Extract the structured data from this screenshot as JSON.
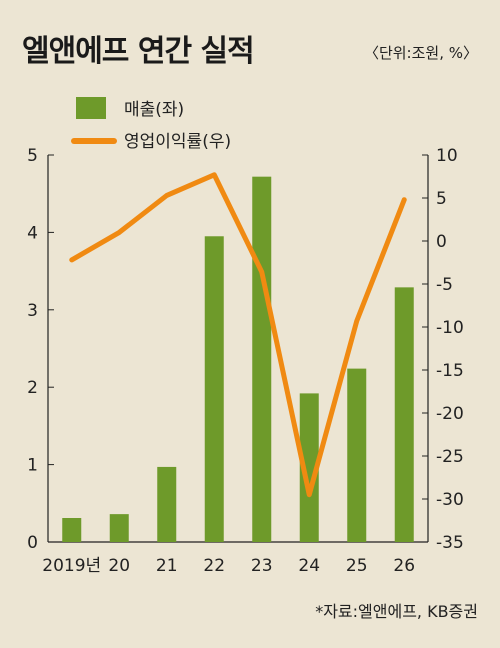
{
  "header": {
    "title": "엘앤에프 연간 실적",
    "unit": "〈단위:조원, %〉"
  },
  "footer": {
    "source": "*자료:엘앤에프, KB증권"
  },
  "colors": {
    "bar": "#6e9a2a",
    "line": "#f08a12",
    "background": "#ece5d3"
  },
  "chart_data": {
    "type": "bar",
    "categories": [
      "2019년",
      "20",
      "21",
      "22",
      "23",
      "24",
      "25",
      "26"
    ],
    "series": [
      {
        "name": "매출(좌)",
        "type": "bar",
        "axis": "left",
        "values": [
          0.31,
          0.36,
          0.97,
          3.95,
          4.72,
          1.92,
          2.24,
          3.29
        ]
      },
      {
        "name": "영업이익률(우)",
        "type": "line",
        "axis": "right",
        "values": [
          -2.2,
          1.0,
          5.3,
          7.7,
          -3.6,
          -29.5,
          -9.3,
          4.8
        ]
      }
    ],
    "y_left": {
      "min": 0,
      "max": 5,
      "ticks": [
        0,
        1,
        2,
        3,
        4,
        5
      ]
    },
    "y_right": {
      "min": -35,
      "max": 10,
      "ticks": [
        10,
        5,
        0,
        -5,
        -10,
        -15,
        -20,
        -25,
        -30,
        -35
      ]
    },
    "grid": false,
    "legend_position": "top-left"
  }
}
